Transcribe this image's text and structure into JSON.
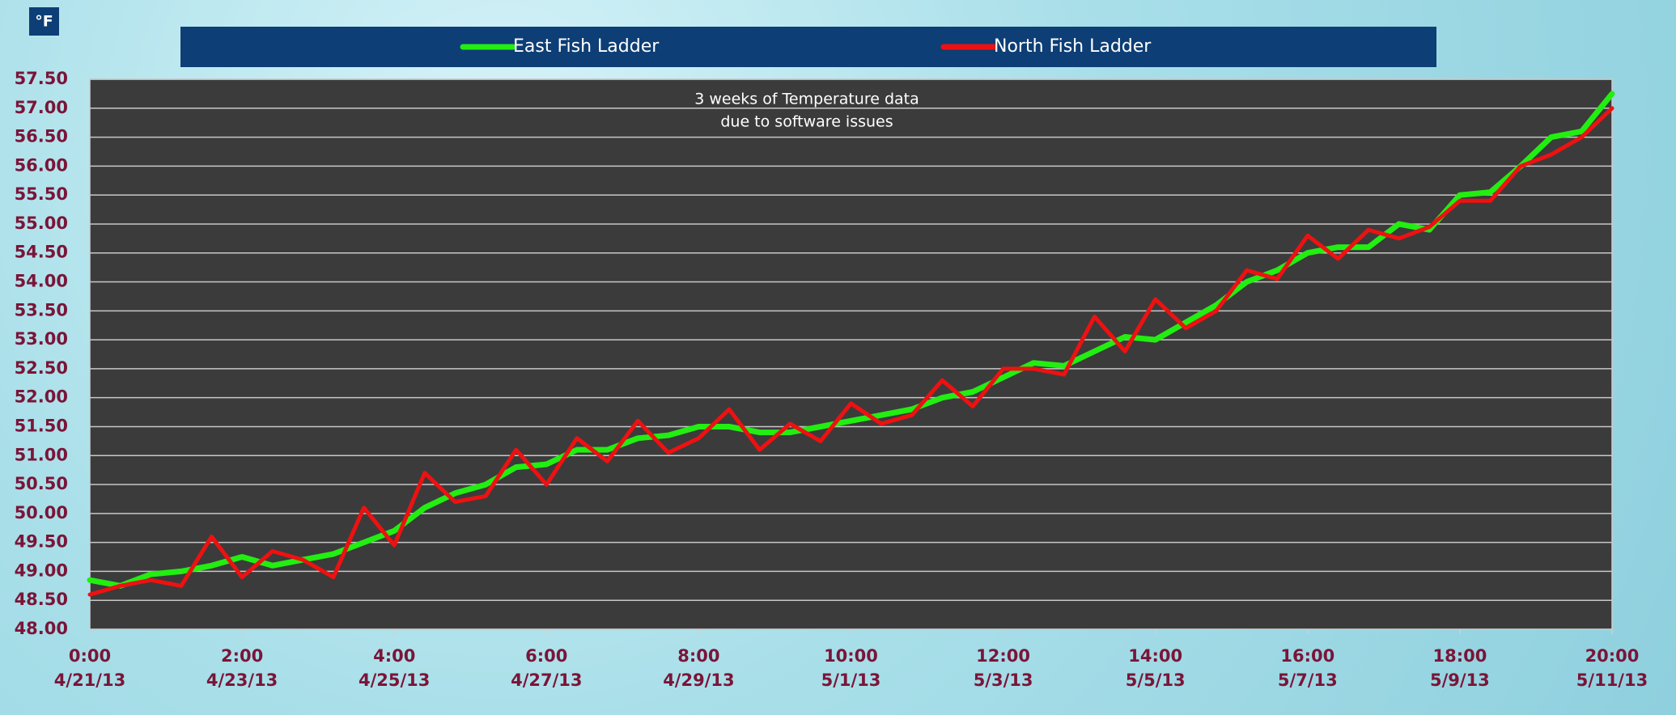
{
  "chart_data": {
    "type": "line",
    "unit_label": "°F",
    "annotation": [
      "3 weeks of Temperature data",
      "due to software issues"
    ],
    "x": [
      "2013-04-21T00:00",
      "2013-04-21T10:00",
      "2013-04-21T20:00",
      "2013-04-22T06:00",
      "2013-04-22T16:00",
      "2013-04-23T02:00",
      "2013-04-23T12:00",
      "2013-04-23T22:00",
      "2013-04-24T08:00",
      "2013-04-24T18:00",
      "2013-04-25T04:00",
      "2013-04-25T14:00",
      "2013-04-26T00:00",
      "2013-04-26T10:00",
      "2013-04-26T20:00",
      "2013-04-27T06:00",
      "2013-04-27T16:00",
      "2013-04-28T02:00",
      "2013-04-28T12:00",
      "2013-04-28T22:00",
      "2013-04-29T08:00",
      "2013-04-29T18:00",
      "2013-04-30T04:00",
      "2013-04-30T14:00",
      "2013-05-01T00:00",
      "2013-05-01T10:00",
      "2013-05-01T20:00",
      "2013-05-02T06:00",
      "2013-05-02T16:00",
      "2013-05-03T02:00",
      "2013-05-03T12:00",
      "2013-05-03T22:00",
      "2013-05-04T08:00",
      "2013-05-04T18:00",
      "2013-05-05T04:00",
      "2013-05-05T14:00",
      "2013-05-06T00:00",
      "2013-05-06T10:00",
      "2013-05-06T20:00",
      "2013-05-07T06:00",
      "2013-05-07T16:00",
      "2013-05-08T02:00",
      "2013-05-08T12:00",
      "2013-05-08T22:00",
      "2013-05-09T08:00",
      "2013-05-09T18:00",
      "2013-05-10T04:00",
      "2013-05-10T14:00",
      "2013-05-11T00:00",
      "2013-05-11T10:00",
      "2013-05-11T20:00"
    ],
    "series": [
      {
        "name": "East Fish Ladder",
        "color": "#22ee11",
        "values": [
          48.85,
          48.75,
          48.95,
          49.0,
          49.1,
          49.25,
          49.1,
          49.2,
          49.3,
          49.5,
          49.7,
          50.1,
          50.35,
          50.5,
          50.8,
          50.85,
          51.1,
          51.1,
          51.3,
          51.35,
          51.5,
          51.5,
          51.4,
          51.4,
          51.5,
          51.6,
          51.7,
          51.8,
          52.0,
          52.1,
          52.35,
          52.6,
          52.55,
          52.8,
          53.05,
          53.0,
          53.3,
          53.6,
          54.0,
          54.2,
          54.5,
          54.6,
          54.6,
          55.0,
          54.9,
          55.5,
          55.55,
          56.0,
          56.5,
          56.6,
          57.25
        ]
      },
      {
        "name": "North Fish Ladder",
        "color": "#ee1111",
        "values": [
          48.6,
          48.75,
          48.85,
          48.75,
          49.6,
          48.9,
          49.35,
          49.2,
          48.9,
          50.1,
          49.45,
          50.7,
          50.2,
          50.3,
          51.1,
          50.5,
          51.3,
          50.9,
          51.6,
          51.05,
          51.3,
          51.8,
          51.1,
          51.55,
          51.25,
          51.9,
          51.55,
          51.7,
          52.3,
          51.85,
          52.5,
          52.5,
          52.4,
          53.4,
          52.8,
          53.7,
          53.2,
          53.5,
          54.2,
          54.05,
          54.8,
          54.4,
          54.9,
          54.75,
          54.95,
          55.4,
          55.4,
          56.0,
          56.2,
          56.5,
          57.0
        ]
      }
    ],
    "xlim": [
      "2013-04-21T00:00",
      "2013-05-11T20:00"
    ],
    "xticks": [
      {
        "value": "2013-04-21T00:00",
        "label": [
          "0:00",
          "4/21/13"
        ]
      },
      {
        "value": "2013-04-23T02:00",
        "label": [
          "2:00",
          "4/23/13"
        ]
      },
      {
        "value": "2013-04-25T04:00",
        "label": [
          "4:00",
          "4/25/13"
        ]
      },
      {
        "value": "2013-04-27T06:00",
        "label": [
          "6:00",
          "4/27/13"
        ]
      },
      {
        "value": "2013-04-29T08:00",
        "label": [
          "8:00",
          "4/29/13"
        ]
      },
      {
        "value": "2013-05-01T10:00",
        "label": [
          "10:00",
          "5/1/13"
        ]
      },
      {
        "value": "2013-05-03T12:00",
        "label": [
          "12:00",
          "5/3/13"
        ]
      },
      {
        "value": "2013-05-05T14:00",
        "label": [
          "14:00",
          "5/5/13"
        ]
      },
      {
        "value": "2013-05-07T16:00",
        "label": [
          "16:00",
          "5/7/13"
        ]
      },
      {
        "value": "2013-05-09T18:00",
        "label": [
          "18:00",
          "5/9/13"
        ]
      },
      {
        "value": "2013-05-11T20:00",
        "label": [
          "20:00",
          "5/11/13"
        ]
      }
    ],
    "ylim": [
      48.0,
      57.5
    ],
    "yticks": [
      {
        "value": 48.0,
        "label": "48.00"
      },
      {
        "value": 48.5,
        "label": "48.50"
      },
      {
        "value": 49.0,
        "label": "49.00"
      },
      {
        "value": 49.5,
        "label": "49.50"
      },
      {
        "value": 50.0,
        "label": "50.00"
      },
      {
        "value": 50.5,
        "label": "50.50"
      },
      {
        "value": 51.0,
        "label": "51.00"
      },
      {
        "value": 51.5,
        "label": "51.50"
      },
      {
        "value": 52.0,
        "label": "52.00"
      },
      {
        "value": 52.5,
        "label": "52.50"
      },
      {
        "value": 53.0,
        "label": "53.00"
      },
      {
        "value": 53.5,
        "label": "53.50"
      },
      {
        "value": 54.0,
        "label": "54.00"
      },
      {
        "value": 54.5,
        "label": "54.50"
      },
      {
        "value": 55.0,
        "label": "55.00"
      },
      {
        "value": 55.5,
        "label": "55.50"
      },
      {
        "value": 56.0,
        "label": "56.00"
      },
      {
        "value": 56.5,
        "label": "56.50"
      },
      {
        "value": 57.0,
        "label": "57.00"
      },
      {
        "value": 57.5,
        "label": "57.50"
      }
    ],
    "grid": true,
    "legend": "top"
  }
}
